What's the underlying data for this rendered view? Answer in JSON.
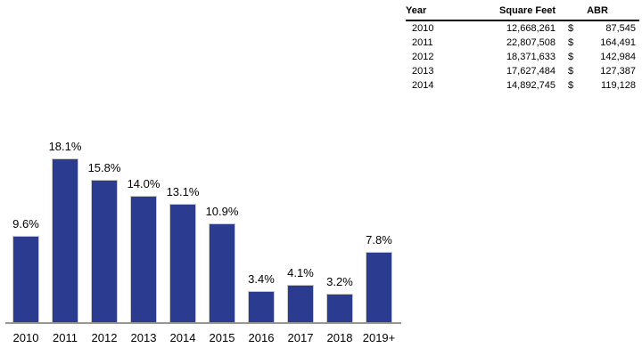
{
  "table": {
    "headers": [
      "Year",
      "Square Feet",
      "ABR"
    ],
    "rows": [
      {
        "year": "2010",
        "square_feet": "12,668,261",
        "currency": "$",
        "abr": "87,545"
      },
      {
        "year": "2011",
        "square_feet": "22,807,508",
        "currency": "$",
        "abr": "164,491"
      },
      {
        "year": "2012",
        "square_feet": "18,371,633",
        "currency": "$",
        "abr": "142,984"
      },
      {
        "year": "2013",
        "square_feet": "17,627,484",
        "currency": "$",
        "abr": "127,387"
      },
      {
        "year": "2014",
        "square_feet": "14,892,745",
        "currency": "$",
        "abr": "119,128"
      }
    ]
  },
  "chart_data": {
    "type": "bar",
    "categories": [
      "2010",
      "2011",
      "2012",
      "2013",
      "2014",
      "2015",
      "2016",
      "2017",
      "2018",
      "2019+"
    ],
    "values": [
      9.6,
      18.1,
      15.8,
      14.0,
      13.1,
      10.9,
      3.4,
      4.1,
      3.2,
      7.8
    ],
    "labels": [
      "9.6%",
      "18.1%",
      "15.8%",
      "14.0%",
      "13.1%",
      "10.9%",
      "3.4%",
      "4.1%",
      "3.2%",
      "7.8%"
    ],
    "title": "",
    "xlabel": "",
    "ylabel": "",
    "ylim": [
      0,
      20
    ],
    "grid": false,
    "legend": false,
    "bar_color": "#2B3B90",
    "bar_border_color": "#C9C9C9",
    "axis_color": "#969696",
    "label_color": "#000000"
  }
}
